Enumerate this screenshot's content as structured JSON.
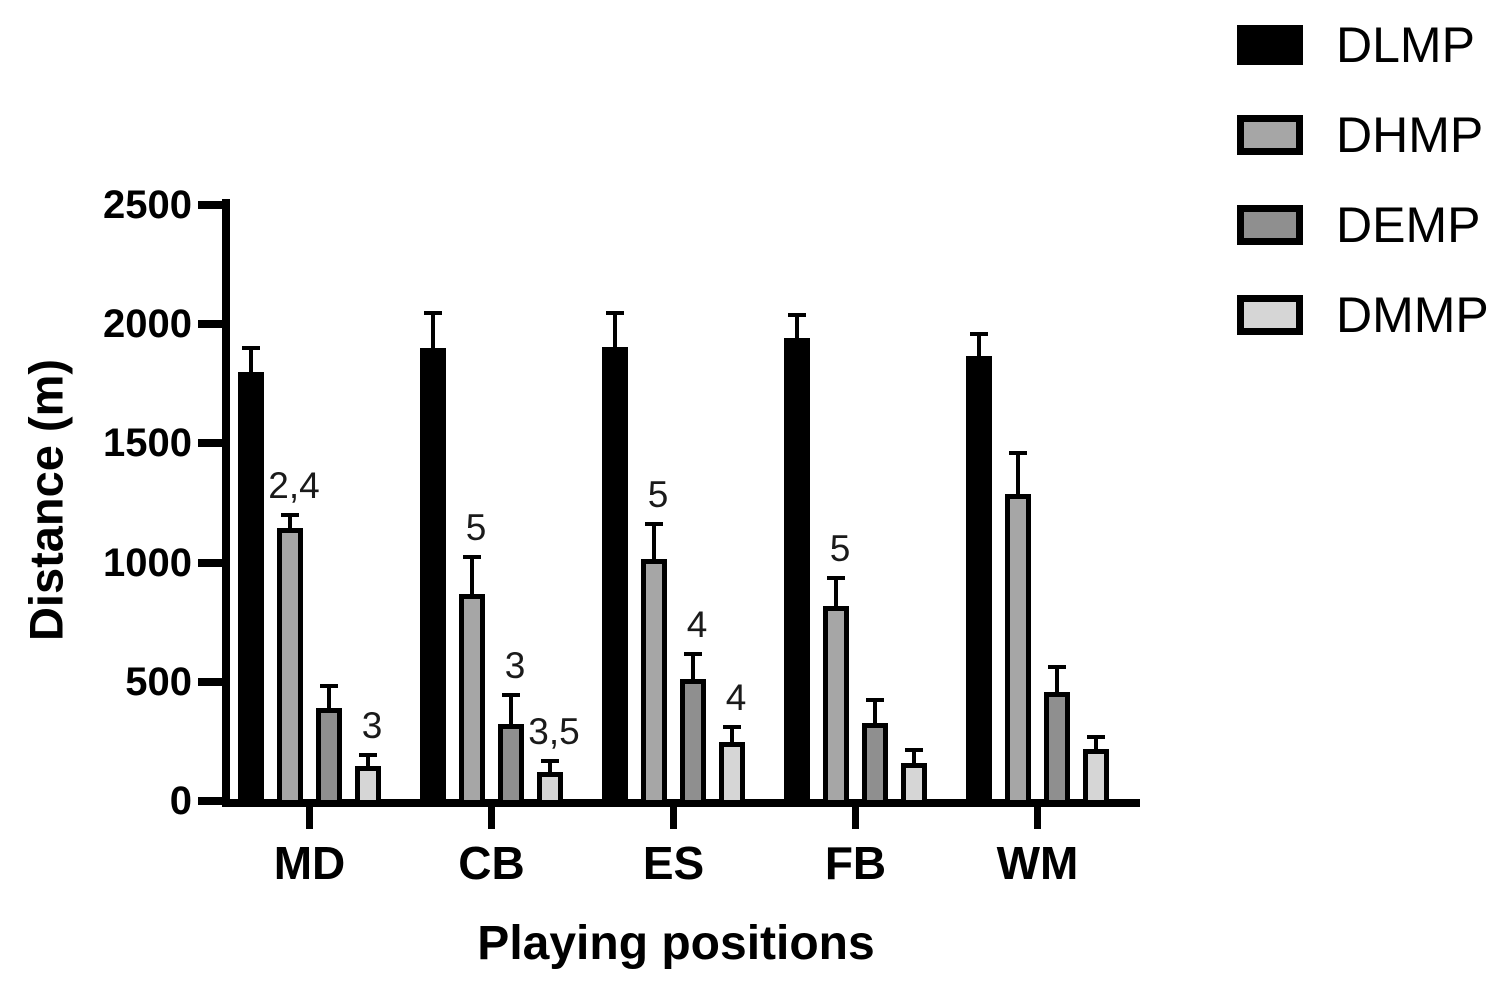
{
  "figure": {
    "background": "#ffffff",
    "axis_color": "#000000"
  },
  "chart_data": {
    "type": "bar",
    "title": "",
    "xlabel": "Playing positions",
    "ylabel": "Distance (m)",
    "categories": [
      "MD",
      "CB",
      "ES",
      "FB",
      "WM"
    ],
    "series": [
      {
        "name": "DLMP",
        "fill": "#000000",
        "solid": true,
        "values": [
          1790,
          1890,
          1895,
          1935,
          1860
        ],
        "errors": [
          100,
          150,
          145,
          95,
          90
        ]
      },
      {
        "name": "DHMP",
        "fill": "#a6a6a6",
        "solid": false,
        "values": [
          1135,
          860,
          1005,
          810,
          1280
        ],
        "errors": [
          55,
          155,
          150,
          115,
          170
        ]
      },
      {
        "name": "DEMP",
        "fill": "#8f8f8f",
        "solid": false,
        "values": [
          380,
          315,
          505,
          320,
          450
        ],
        "errors": [
          95,
          120,
          105,
          95,
          105
        ]
      },
      {
        "name": "DMMP",
        "fill": "#d6d6d6",
        "solid": false,
        "values": [
          140,
          115,
          240,
          150,
          210
        ],
        "errors": [
          45,
          45,
          60,
          55,
          50
        ]
      }
    ],
    "annotations": [
      {
        "category": "MD",
        "series": "DHMP",
        "text": "2,4"
      },
      {
        "category": "MD",
        "series": "DMMP",
        "text": "3"
      },
      {
        "category": "CB",
        "series": "DHMP",
        "text": "5"
      },
      {
        "category": "CB",
        "series": "DEMP",
        "text": "3"
      },
      {
        "category": "CB",
        "series": "DMMP",
        "text": "3,5"
      },
      {
        "category": "ES",
        "series": "DHMP",
        "text": "5"
      },
      {
        "category": "ES",
        "series": "DEMP",
        "text": "4"
      },
      {
        "category": "ES",
        "series": "DMMP",
        "text": "4"
      },
      {
        "category": "FB",
        "series": "DHMP",
        "text": "5"
      }
    ],
    "ylim": [
      0,
      2500
    ],
    "yticks": [
      0,
      500,
      1000,
      1500,
      2000,
      2500
    ],
    "grid": false,
    "error_bars": "upper",
    "legend_position": "top-right",
    "legend_entries": [
      "DLMP",
      "DHMP",
      "DEMP",
      "DMMP"
    ]
  }
}
